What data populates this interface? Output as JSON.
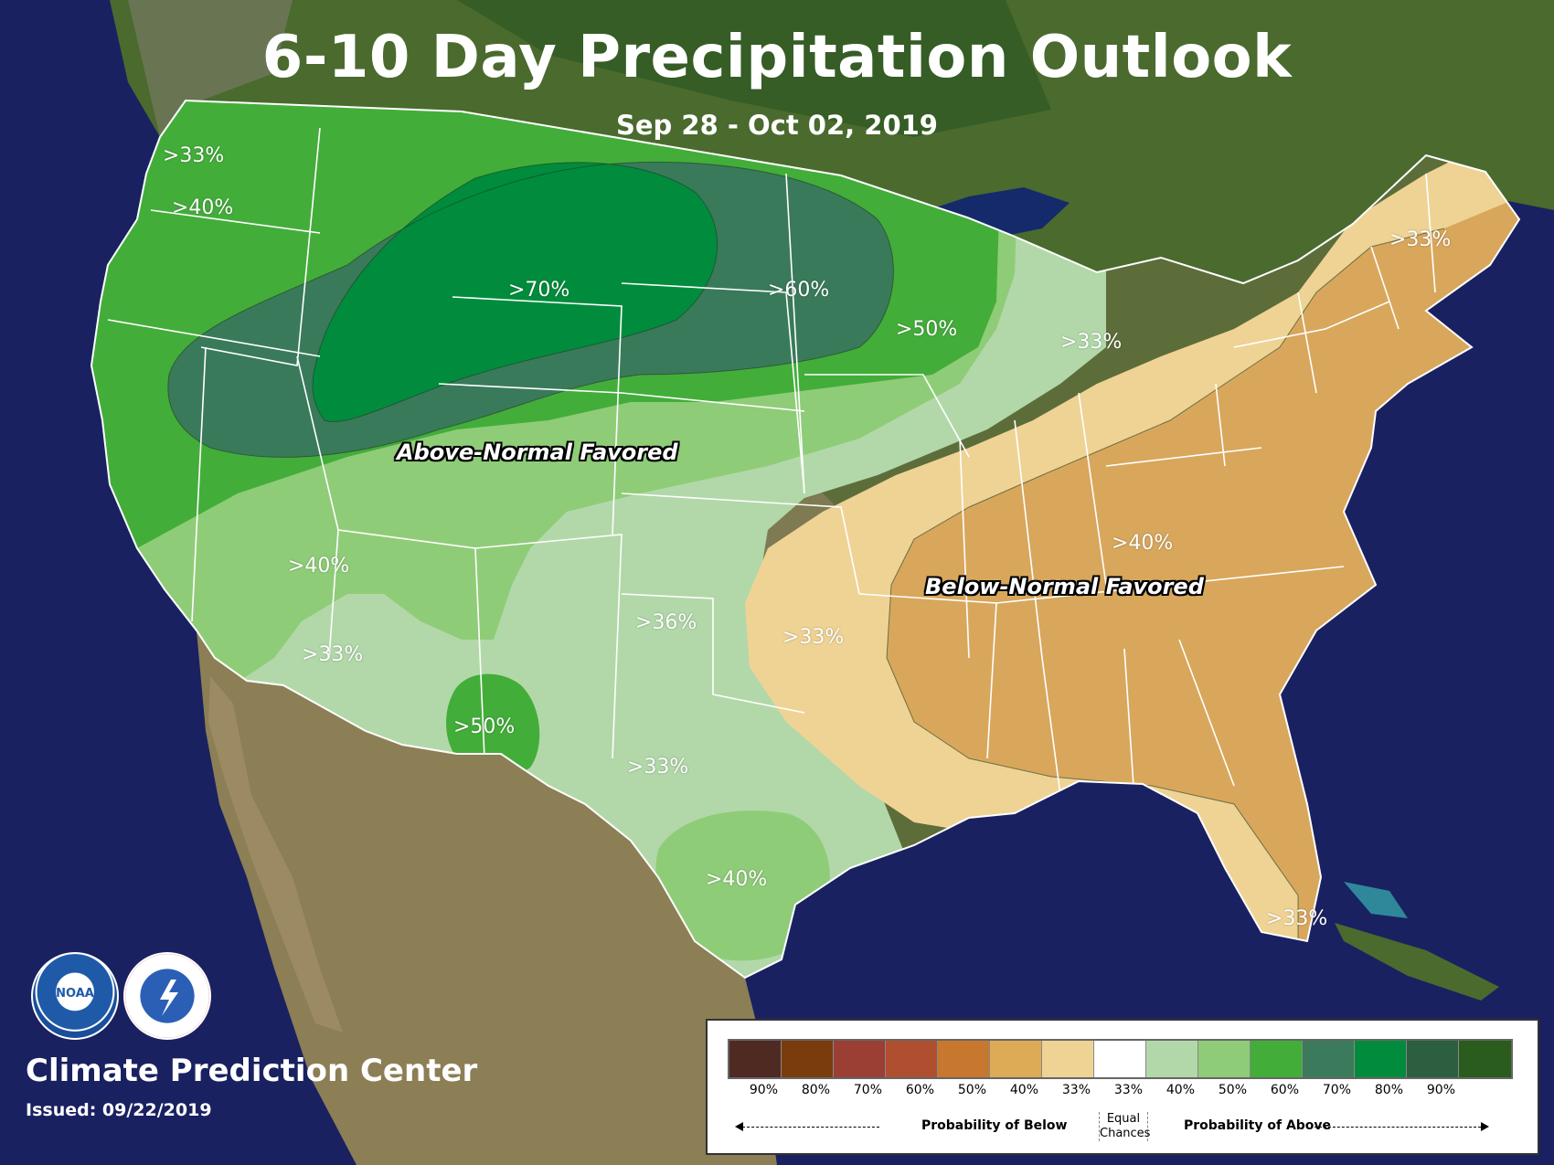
{
  "title": "6-10 Day Precipitation Outlook",
  "subtitle": "Sep 28 - Oct 02, 2019",
  "organization": "Climate Prediction Center",
  "issued": "Issued: 09/22/2019",
  "logos": {
    "noaa": "NOAA",
    "nws": "NATIONAL WEATHER SERVICE"
  },
  "colors": {
    "ocean": "#1a2160",
    "land": "#4e6b2c",
    "desert": "#9c8a62",
    "above_33": "#b2d8a9",
    "above_40": "#8fcc78",
    "above_50": "#43ad3a",
    "above_60": "#397a5a",
    "above_70": "#008c3c",
    "below_33": "#efd395",
    "below_40": "#d8a75c"
  },
  "map_labels": [
    {
      "id": "nw-33",
      "text": ">33%"
    },
    {
      "id": "nw-40",
      "text": ">40%"
    },
    {
      "id": "north-70",
      "text": ">70%"
    },
    {
      "id": "north-60",
      "text": ">60%"
    },
    {
      "id": "wi-50",
      "text": ">50%"
    },
    {
      "id": "mi-33",
      "text": ">33%"
    },
    {
      "id": "ne-33",
      "text": ">33%"
    },
    {
      "id": "sw-40",
      "text": ">40%"
    },
    {
      "id": "az-33",
      "text": ">33%"
    },
    {
      "id": "nm-50",
      "text": ">50%"
    },
    {
      "id": "ok-36",
      "text": ">36%"
    },
    {
      "id": "ar-33",
      "text": ">33%"
    },
    {
      "id": "ky-40",
      "text": ">40%"
    },
    {
      "id": "tx-33",
      "text": ">33%"
    },
    {
      "id": "tx-40",
      "text": ">40%"
    },
    {
      "id": "fl-33",
      "text": ">33%"
    }
  ],
  "favored": {
    "above": "Above-Normal Favored",
    "below": "Below-Normal Favored"
  },
  "legend": {
    "swatch_colors": [
      "#4f2a23",
      "#7a3c0c",
      "#9b3e33",
      "#b04f30",
      "#c8772e",
      "#ddaa56",
      "#efd394",
      "#ffffff",
      "#b2d8a9",
      "#8fcc78",
      "#43ad3a",
      "#3b7b5c",
      "#008c3c",
      "#2b5f3f",
      "#2a5c1e"
    ],
    "ticks": [
      "90%",
      "80%",
      "70%",
      "60%",
      "50%",
      "40%",
      "33%",
      "33%",
      "40%",
      "50%",
      "60%",
      "70%",
      "80%",
      "90%"
    ],
    "below_caption": "Probability of Below",
    "above_caption": "Probability of Above",
    "equal_line1": "Equal",
    "equal_line2": "Chances"
  }
}
